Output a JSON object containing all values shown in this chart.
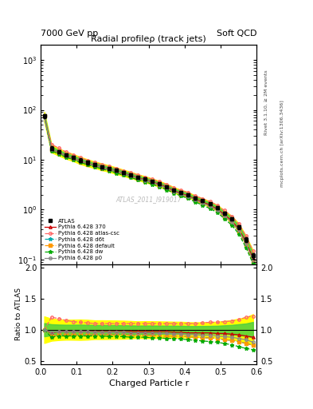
{
  "title_left": "7000 GeV pp",
  "title_right": "Soft QCD",
  "main_title": "Radial profileρ (track jets)",
  "xlabel": "Charged Particle r",
  "ylabel_ratio": "Ratio to ATLAS",
  "right_label_top": "Rivet 3.1.10, ≥ 2M events",
  "right_label_bottom": "mcplots.cern.ch [arXiv:1306.3436]",
  "watermark": "ATLAS_2011_I919017",
  "x": [
    0.01,
    0.03,
    0.05,
    0.07,
    0.09,
    0.11,
    0.13,
    0.15,
    0.17,
    0.19,
    0.21,
    0.23,
    0.25,
    0.27,
    0.29,
    0.31,
    0.33,
    0.35,
    0.37,
    0.39,
    0.41,
    0.43,
    0.45,
    0.47,
    0.49,
    0.51,
    0.53,
    0.55,
    0.57,
    0.59
  ],
  "atlas_y": [
    75,
    17,
    14.5,
    12.5,
    11.2,
    9.8,
    8.8,
    8.0,
    7.3,
    6.7,
    6.1,
    5.5,
    5.0,
    4.5,
    4.1,
    3.7,
    3.3,
    2.9,
    2.5,
    2.2,
    2.0,
    1.7,
    1.5,
    1.3,
    1.1,
    0.85,
    0.65,
    0.45,
    0.25,
    0.12
  ],
  "atlas_yerr": [
    8,
    1.5,
    1.2,
    1.0,
    0.9,
    0.8,
    0.7,
    0.6,
    0.55,
    0.5,
    0.45,
    0.4,
    0.35,
    0.3,
    0.28,
    0.25,
    0.22,
    0.19,
    0.16,
    0.14,
    0.12,
    0.1,
    0.09,
    0.08,
    0.07,
    0.06,
    0.05,
    0.04,
    0.025,
    0.015
  ],
  "pythia370_ratio": [
    1.0,
    0.95,
    0.97,
    0.97,
    0.97,
    0.97,
    0.97,
    0.97,
    0.97,
    0.97,
    0.97,
    0.97,
    0.97,
    0.97,
    0.97,
    0.97,
    0.97,
    0.97,
    0.96,
    0.96,
    0.95,
    0.95,
    0.95,
    0.95,
    0.94,
    0.94,
    0.93,
    0.92,
    0.9,
    0.88
  ],
  "atlas_csc_ratio": [
    1.0,
    1.2,
    1.18,
    1.15,
    1.13,
    1.12,
    1.11,
    1.1,
    1.1,
    1.1,
    1.1,
    1.1,
    1.1,
    1.1,
    1.1,
    1.1,
    1.1,
    1.1,
    1.1,
    1.1,
    1.1,
    1.1,
    1.11,
    1.12,
    1.12,
    1.13,
    1.14,
    1.16,
    1.2,
    1.22
  ],
  "d6t_ratio": [
    1.0,
    0.9,
    0.92,
    0.92,
    0.92,
    0.92,
    0.92,
    0.92,
    0.92,
    0.92,
    0.92,
    0.92,
    0.91,
    0.91,
    0.91,
    0.91,
    0.9,
    0.9,
    0.9,
    0.9,
    0.89,
    0.88,
    0.87,
    0.87,
    0.86,
    0.84,
    0.83,
    0.81,
    0.78,
    0.75
  ],
  "default_ratio": [
    1.0,
    0.9,
    0.92,
    0.92,
    0.92,
    0.92,
    0.92,
    0.92,
    0.92,
    0.92,
    0.92,
    0.92,
    0.91,
    0.91,
    0.91,
    0.91,
    0.9,
    0.9,
    0.9,
    0.9,
    0.89,
    0.88,
    0.87,
    0.87,
    0.86,
    0.84,
    0.83,
    0.81,
    0.78,
    0.75
  ],
  "dw_ratio": [
    1.0,
    0.88,
    0.9,
    0.9,
    0.9,
    0.9,
    0.9,
    0.9,
    0.9,
    0.89,
    0.89,
    0.89,
    0.88,
    0.88,
    0.88,
    0.87,
    0.87,
    0.86,
    0.86,
    0.85,
    0.84,
    0.83,
    0.82,
    0.81,
    0.8,
    0.78,
    0.76,
    0.73,
    0.7,
    0.68
  ],
  "p0_ratio": [
    1.0,
    0.96,
    0.97,
    0.97,
    0.97,
    0.97,
    0.97,
    0.96,
    0.96,
    0.96,
    0.96,
    0.96,
    0.95,
    0.95,
    0.95,
    0.95,
    0.94,
    0.94,
    0.93,
    0.93,
    0.92,
    0.92,
    0.91,
    0.91,
    0.9,
    0.89,
    0.88,
    0.86,
    0.84,
    0.8
  ],
  "color_atlas": "#000000",
  "color_370": "#cc0000",
  "color_csc": "#ff6666",
  "color_d6t": "#00aaaa",
  "color_default": "#ff9900",
  "color_dw": "#00aa00",
  "color_p0": "#888888",
  "band_yellow": "#ffff00",
  "band_green": "#44cc44",
  "xlim": [
    0.0,
    0.6
  ],
  "ylim_main": [
    0.08,
    2000
  ],
  "ylim_ratio": [
    0.45,
    2.05
  ],
  "ratio_yticks": [
    0.5,
    1.0,
    1.5,
    2.0
  ]
}
